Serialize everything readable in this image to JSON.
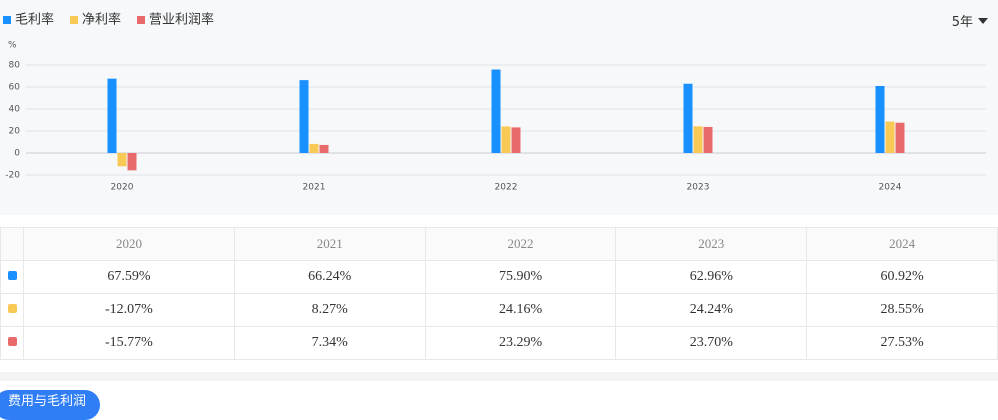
{
  "chart_data": {
    "type": "bar",
    "y_label": "%",
    "categories": [
      "2020",
      "2021",
      "2022",
      "2023",
      "2024"
    ],
    "series": [
      {
        "name": "毛利率",
        "color": "#1890ff",
        "values": [
          67.59,
          66.24,
          75.9,
          62.96,
          60.92
        ]
      },
      {
        "name": "净利率",
        "color": "#f8c955",
        "values": [
          -12.07,
          8.27,
          24.16,
          24.24,
          28.55
        ]
      },
      {
        "name": "营业利润率",
        "color": "#e96a6a",
        "values": [
          -15.77,
          7.34,
          23.29,
          23.7,
          27.53
        ]
      }
    ],
    "ylim": [
      -20,
      80
    ],
    "yticks": [
      -20,
      0,
      20,
      40,
      60,
      80
    ],
    "grid": true,
    "legend": "top-left"
  },
  "period_selector": "5年",
  "table": {
    "header": [
      "2020",
      "2021",
      "2022",
      "2023",
      "2024"
    ],
    "rows": [
      [
        "67.59%",
        "66.24%",
        "75.90%",
        "62.96%",
        "60.92%"
      ],
      [
        "-12.07%",
        "8.27%",
        "24.16%",
        "24.24%",
        "28.55%"
      ],
      [
        "-15.77%",
        "7.34%",
        "23.29%",
        "23.70%",
        "27.53%"
      ]
    ]
  },
  "button": "费用与毛利润"
}
